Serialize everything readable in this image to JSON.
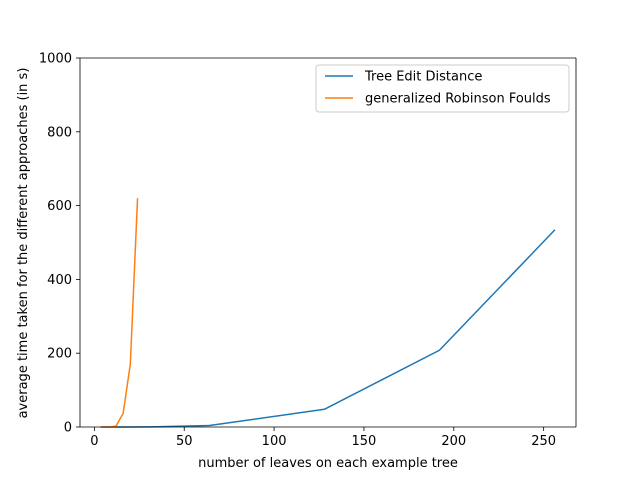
{
  "chart_data": {
    "type": "line",
    "xlabel": "number of leaves on each example tree",
    "ylabel": "average time taken for the different approaches (in s)",
    "xlim": [
      -8,
      268
    ],
    "ylim": [
      0,
      1000
    ],
    "xticks": [
      0,
      50,
      100,
      150,
      200,
      250
    ],
    "yticks": [
      0,
      200,
      400,
      600,
      800,
      1000
    ],
    "legend_position": "top-right",
    "grid": false,
    "series": [
      {
        "name": "Tree Edit Distance",
        "color": "#1f77b4",
        "x": [
          4,
          8,
          16,
          32,
          64,
          128,
          192,
          256
        ],
        "y": [
          0,
          0,
          0,
          0.5,
          4,
          48,
          208,
          533
        ]
      },
      {
        "name": "generalized Robinson Foulds",
        "color": "#ff7f0e",
        "x": [
          4,
          8,
          12,
          16,
          20,
          24
        ],
        "y": [
          0,
          0,
          2,
          37,
          170,
          618
        ]
      }
    ]
  }
}
